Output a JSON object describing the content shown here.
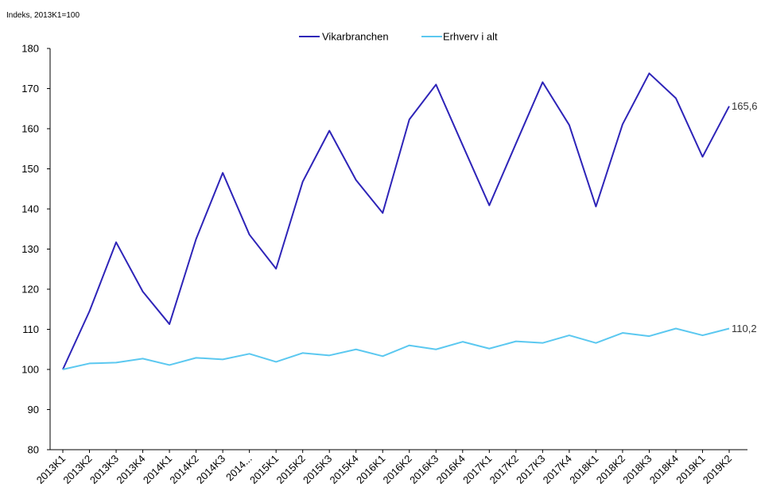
{
  "chart_data": {
    "type": "line",
    "ylabel": "Indeks, 2013K1=100",
    "ylim": [
      80,
      180
    ],
    "yticks": [
      80,
      90,
      100,
      110,
      120,
      130,
      140,
      150,
      160,
      170,
      180
    ],
    "categories": [
      "2013K1",
      "2013K2",
      "2013K3",
      "2013K4",
      "2014K1",
      "2014K2",
      "2014K3",
      "2014...",
      "2015K1",
      "2015K2",
      "2015K3",
      "2015K4",
      "2016K1",
      "2016K2",
      "2016K3",
      "2016K4",
      "2017K1",
      "2017K2",
      "2017K3",
      "2017K4",
      "2018K1",
      "2018K2",
      "2018K3",
      "2018K4",
      "2019K1",
      "2019K2"
    ],
    "series": [
      {
        "name": "Vikarbranchen",
        "color": "#2e24b8",
        "values": [
          100,
          114.5,
          131.7,
          119.4,
          111.3,
          132.5,
          149.0,
          133.6,
          125.1,
          146.8,
          159.5,
          147.2,
          139.0,
          162.3,
          171.0,
          155.9,
          140.9,
          156.3,
          171.6,
          160.9,
          140.6,
          161.1,
          173.8,
          167.6,
          153.0,
          165.6
        ],
        "end_label": "165,6"
      },
      {
        "name": "Erhverv i alt",
        "color": "#5bc8f0",
        "values": [
          100,
          101.5,
          101.7,
          102.7,
          101.1,
          102.9,
          102.5,
          103.9,
          101.9,
          104.1,
          103.5,
          105.0,
          103.3,
          106.0,
          105.0,
          106.9,
          105.2,
          107.0,
          106.6,
          108.5,
          106.6,
          109.1,
          108.3,
          110.2,
          108.5,
          110.2
        ],
        "end_label": "110,2"
      }
    ],
    "legend_position": "top-center",
    "grid": false
  }
}
